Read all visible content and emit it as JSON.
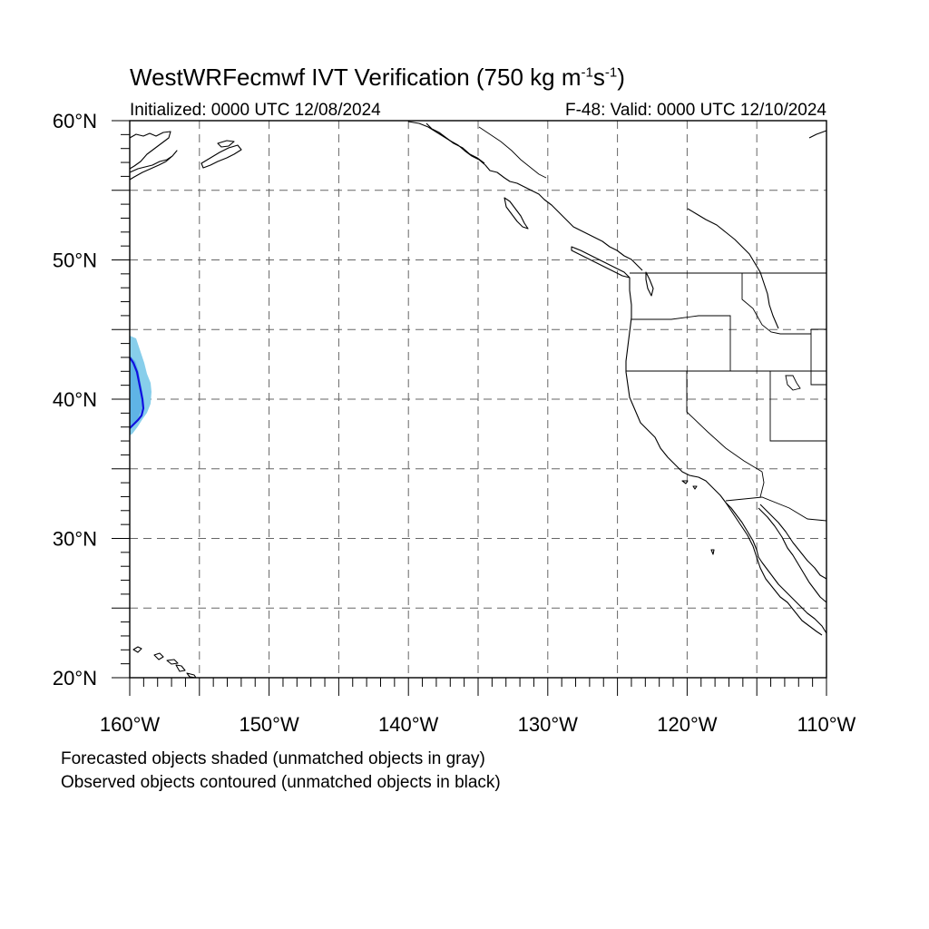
{
  "title": {
    "prefix": "WestWRFecmwf IVT Verification (750 kg m",
    "sup1": "-1",
    "mid": "s",
    "sup2": "-1",
    "suffix": ")"
  },
  "subtitle_left": "Initialized: 0000 UTC 12/08/2024",
  "subtitle_right": "F-48: Valid: 0000 UTC 12/10/2024",
  "notes": [
    "Forecasted objects shaded (unmatched objects in gray)",
    "Observed objects contoured (unmatched objects in black)"
  ],
  "map": {
    "lon_range": [
      -160,
      -110
    ],
    "lat_range": [
      20,
      60
    ],
    "lon_labels": [
      "160°W",
      "150°W",
      "140°W",
      "130°W",
      "120°W",
      "110°W"
    ],
    "lat_labels": [
      "20°N",
      "30°N",
      "40°N",
      "50°N",
      "60°N"
    ],
    "grid_interval_deg": 5,
    "gridlines": "dashed",
    "colors": {
      "forecast_shade": "#87ceeb",
      "forecast_shade_inner": "#5fb4e6",
      "observed_contour": "#1010e0",
      "coastline": "#000000",
      "gridline": "#666666"
    }
  }
}
